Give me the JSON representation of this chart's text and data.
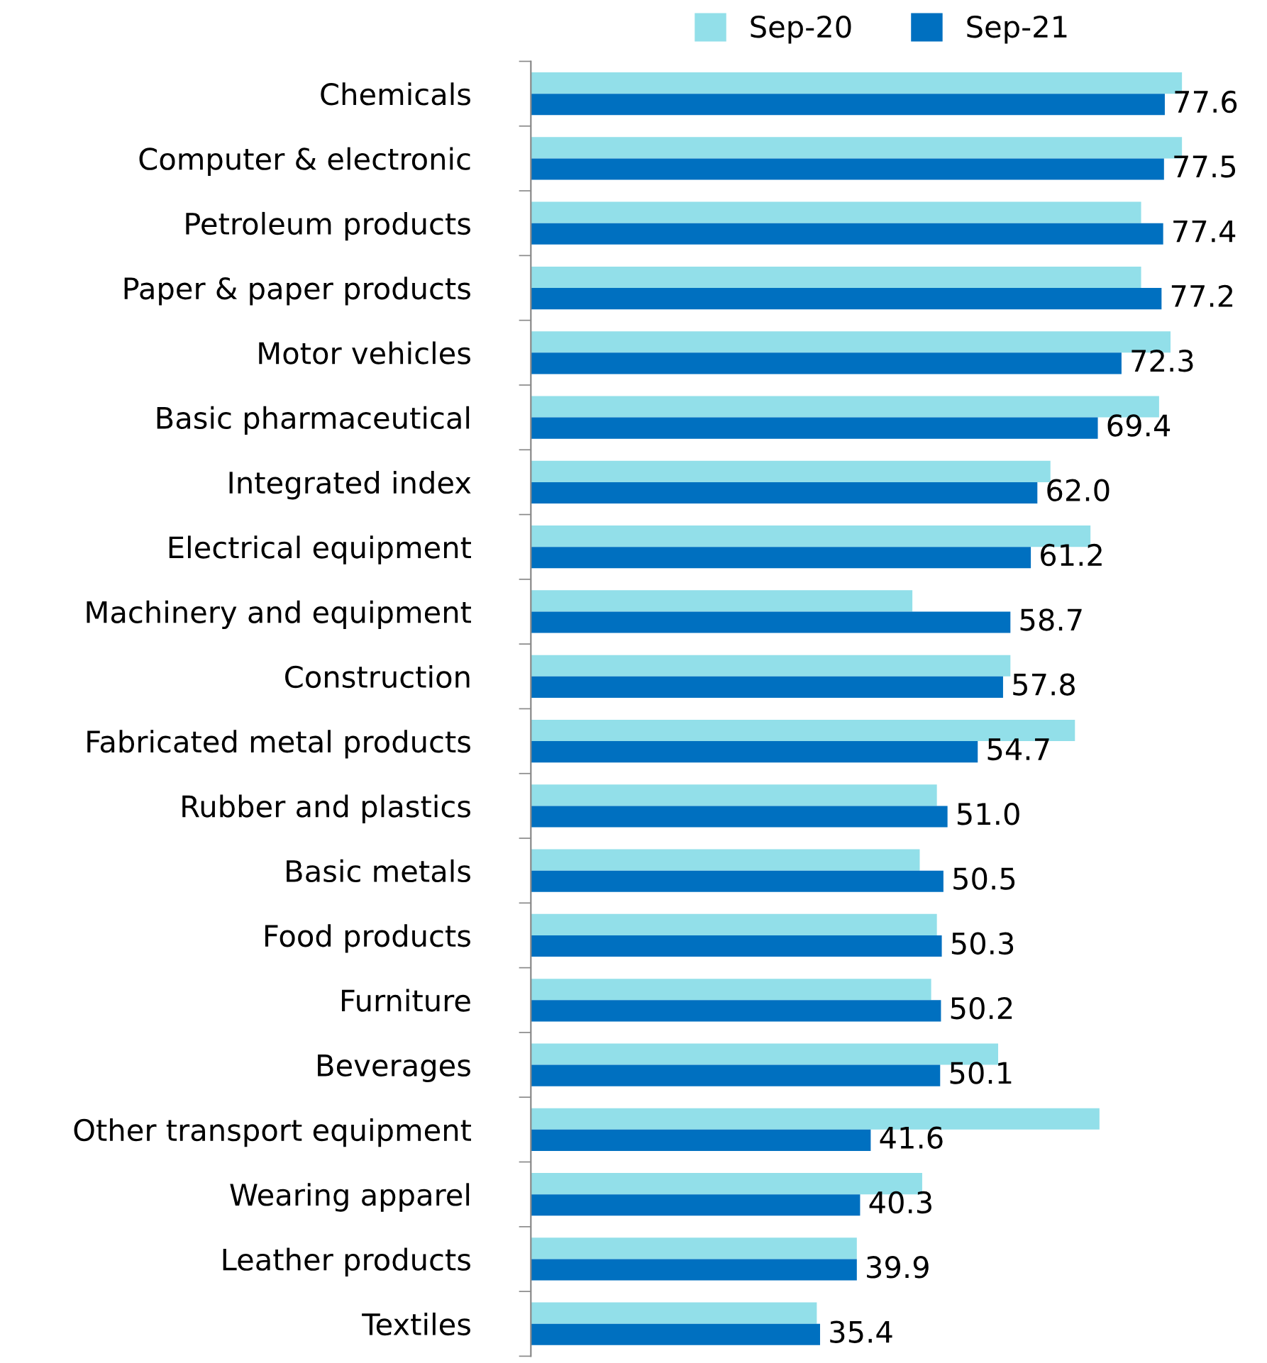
{
  "chart_data": {
    "type": "bar",
    "orientation": "horizontal",
    "legend": "top",
    "categories": [
      "Chemicals",
      "Computer & electronic",
      "Petroleum products",
      "Paper & paper products",
      "Motor vehicles",
      "Basic pharmaceutical",
      "Integrated index",
      "Electrical equipment",
      "Machinery and equipment",
      "Construction",
      "Fabricated metal products",
      "Rubber and plastics",
      "Basic metals",
      "Food products",
      "Furniture",
      "Beverages",
      "Other transport equipment",
      "Wearing apparel",
      "Leather products",
      "Textiles"
    ],
    "series": [
      {
        "name": "Sep-20",
        "color": "#92dfe9",
        "values": [
          79.7,
          79.7,
          74.7,
          74.7,
          78.3,
          76.9,
          63.6,
          68.5,
          46.7,
          58.7,
          66.6,
          49.7,
          47.6,
          49.7,
          49.0,
          57.2,
          69.6,
          47.9,
          39.9,
          35.0
        ]
      },
      {
        "name": "Sep-21",
        "color": "#0070c0",
        "values": [
          77.6,
          77.5,
          77.4,
          77.2,
          72.3,
          69.4,
          62.0,
          61.2,
          58.7,
          57.8,
          54.7,
          51.0,
          50.5,
          50.3,
          50.2,
          50.1,
          41.6,
          40.3,
          39.9,
          35.4
        ],
        "value_labels": [
          "77.6",
          "77.5",
          "77.4",
          "77.2",
          "72.3",
          "69.4",
          "62.0",
          "61.2",
          "58.7",
          "57.8",
          "54.7",
          "51.0",
          "50.5",
          "50.3",
          "50.2",
          "50.1",
          "41.6",
          "40.3",
          "39.9",
          "35.4"
        ]
      }
    ]
  }
}
